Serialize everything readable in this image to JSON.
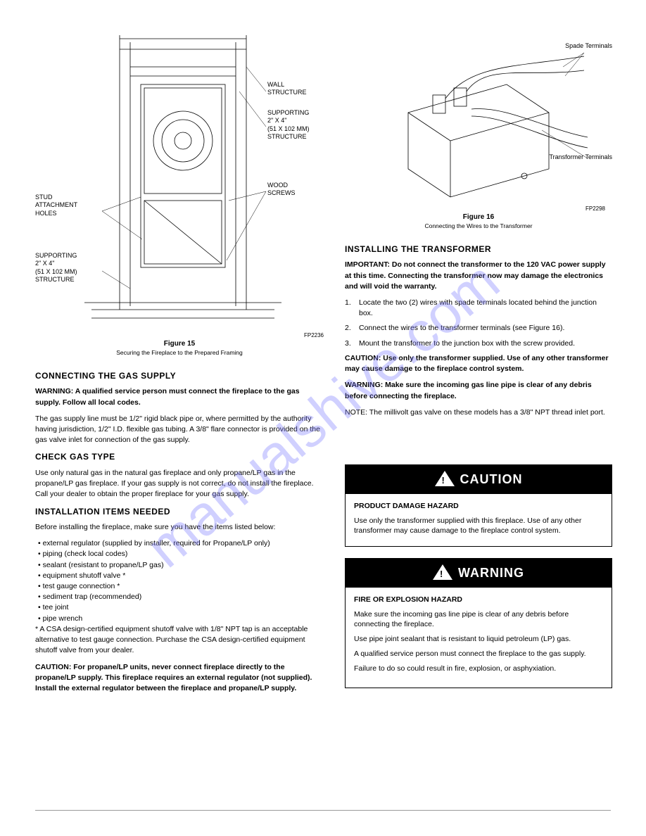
{
  "figure15": {
    "labels": {
      "studAttachment": "STUD\nATTACHMENT\nHOLES",
      "supportingLower": "SUPPORTING\n2\" X 4\"\n(51 X 102 MM)\nSTRUCTURE",
      "wallStructure": "WALL\nSTRUCTURE",
      "supportingUpper": "SUPPORTING\n2\" X 4\"\n(51 X 102 MM)\nSTRUCTURE",
      "woodScrews": "WOOD\nSCREWS"
    },
    "caption": "Figure 15",
    "subcaption": "Securing the Fireplace to the Prepared Framing",
    "code": "FP2236"
  },
  "leftBody": {
    "h_gasSupply": "CONNECTING THE GAS SUPPLY",
    "p1a": "WARNING: A qualified service person must connect the fireplace to the gas supply. Follow all local codes.",
    "p1b": "The gas supply line must be 1/2\" rigid black pipe or, where permitted by the authority having jurisdiction, 1/2\" I.D. flexible gas tubing. A 3/8\" flare connector is provided on the gas valve inlet for connection of the gas supply.",
    "h_checkGasType": "CHECK GAS TYPE",
    "p2": "Use only natural gas in the natural gas fireplace and only propane/LP gas in the propane/LP gas fireplace. If your gas supply is not correct, do not install the fireplace. Call your dealer to obtain the proper fireplace for your gas supply.",
    "h_install": "INSTALLATION ITEMS NEEDED",
    "p3intro": "Before installing the fireplace, make sure you have the items listed below:",
    "items": [
      "external regulator (supplied by installer, required for Propane/LP only)",
      "piping (check local codes)",
      "sealant (resistant to propane/LP gas)",
      "equipment shutoff valve *",
      "test gauge connection *",
      "sediment trap (recommended)",
      "tee joint",
      "pipe wrench"
    ],
    "note1": "* A CSA design-certified equipment shutoff valve with 1/8\" NPT tap is an acceptable alternative to test gauge connection. Purchase the CSA design-certified equipment shutoff valve from your dealer.",
    "note2": "CAUTION: For propane/LP units, never connect fireplace directly to the propane/LP supply. This fireplace requires an external regulator (not supplied). Install the external regulator between the fireplace and propane/LP supply."
  },
  "figure16": {
    "labelSpade": "Spade Terminals",
    "labelTransformer": "Transformer Terminals",
    "caption": "Figure 16",
    "subcaption": "Connecting the Wires to the Transformer",
    "code": "FP2298"
  },
  "rightBody": {
    "h_installing": "INSTALLING THE TRANSFORMER",
    "p0": "IMPORTANT: Do not connect the transformer to the 120 VAC power supply at this time. Connecting the transformer now may damage the electronics and will void the warranty.",
    "step1": "Locate the two (2) wires with spade terminals located behind the junction box.",
    "step2": "Connect the wires to the transformer terminals (see Figure 16).",
    "step3": "Mount the transformer to the junction box with the screw provided.",
    "warn1": "CAUTION: Use only the transformer supplied. Use of any other transformer may cause damage to the fireplace control system.",
    "warn2": "WARNING: Make sure the incoming gas line pipe is clear of any debris before connecting the fireplace.",
    "note3": "NOTE: The millivolt gas valve on these models has a 3/8\" NPT thread inlet port."
  },
  "alerts": {
    "cautionTitle": "CAUTION",
    "cautionHazard": "PRODUCT DAMAGE HAZARD",
    "cautionBody": "Use only the transformer supplied with this fireplace. Use of any other transformer may cause damage to the fireplace control system.",
    "warningTitle": "WARNING",
    "warningHazard": "FIRE OR EXPLOSION HAZARD",
    "warningLines": [
      "Make sure the incoming gas line pipe is clear of any debris before connecting the fireplace.",
      "Use pipe joint sealant that is resistant to liquid petroleum (LP) gas.",
      "A qualified service person must connect the fireplace to the gas supply.",
      "Failure to do so could result in fire, explosion, or asphyxiation."
    ]
  },
  "watermark": "manualshive.com",
  "footer": {
    "left": "",
    "right": ""
  },
  "colors": {
    "text": "#000000",
    "bg": "#ffffff",
    "watermark": "rgba(120,120,255,0.35)"
  }
}
